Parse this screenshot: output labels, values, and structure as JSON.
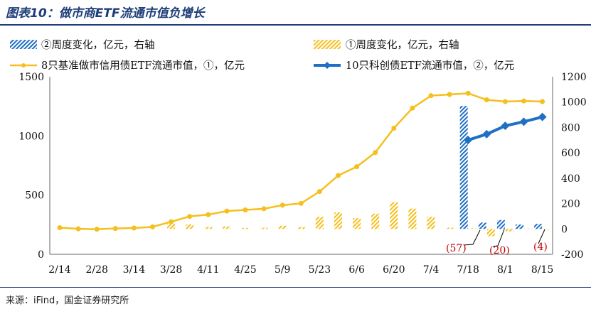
{
  "title": "图表10：做市商ETF流通市值负增长",
  "source": "来源：iFind，国金证券研究所",
  "legend": {
    "s2_bar": "②周度变化，亿元，右轴",
    "s1_bar": "①周度变化，亿元，右轴",
    "s1_line": "8只基准做市信用债ETF流通市值，①，亿元",
    "s2_line": "10只科创债ETF流通市值，②，亿元"
  },
  "colors": {
    "gold": "#f5bf1d",
    "blue": "#1f6fc4",
    "red": "#c00000",
    "navy": "#1f3d78"
  },
  "chart_data": {
    "type": "line",
    "x_tick_labels": [
      "2/14",
      "2/28",
      "3/14",
      "3/28",
      "4/11",
      "4/25",
      "5/9",
      "5/23",
      "6/6",
      "6/20",
      "7/4",
      "7/18",
      "8/1",
      "8/15"
    ],
    "left_ylim": [
      0,
      1500
    ],
    "left_ticks": [
      "0",
      "500",
      "1000",
      "1500"
    ],
    "right_ylim": [
      -200,
      1200
    ],
    "right_ticks": [
      "-200",
      "0",
      "200",
      "400",
      "600",
      "800",
      "1000",
      "1200"
    ],
    "series": [
      {
        "name": "8只基准做市信用债ETF流通市值，①，亿元",
        "axis": "left",
        "x": [
          0,
          1,
          2,
          3,
          4,
          5,
          6,
          7,
          8,
          9,
          10,
          11,
          12,
          13,
          14,
          15,
          16,
          17,
          18,
          19,
          20,
          21,
          22,
          23,
          24,
          25,
          26
        ],
        "values": [
          225,
          215,
          212,
          218,
          222,
          232,
          275,
          320,
          335,
          365,
          375,
          385,
          415,
          430,
          530,
          665,
          740,
          860,
          1065,
          1235,
          1340,
          1350,
          1360,
          1305,
          1290,
          1295,
          1290
        ]
      },
      {
        "name": "10只科创债ETF流通市值，②，亿元",
        "axis": "left",
        "x": [
          22,
          23,
          24,
          25,
          26
        ],
        "values": [
          965,
          1015,
          1085,
          1120,
          1160
        ]
      },
      {
        "name": "①周度变化，亿元，右轴",
        "axis": "right",
        "x": [
          6,
          7,
          8,
          9,
          10,
          11,
          12,
          13,
          14,
          15,
          16,
          17,
          18,
          19,
          20,
          21,
          22,
          23,
          24,
          25,
          26
        ],
        "values": [
          40,
          35,
          15,
          20,
          8,
          10,
          25,
          15,
          95,
          130,
          85,
          120,
          210,
          160,
          95,
          10,
          5,
          -57,
          -20,
          3,
          -4
        ]
      },
      {
        "name": "②周度变化，亿元，右轴",
        "axis": "right",
        "x": [
          22,
          23,
          24,
          25,
          26
        ],
        "values": [
          970,
          50,
          70,
          35,
          40
        ]
      }
    ],
    "annotations": [
      "(57)",
      "(20)",
      "(4)"
    ]
  }
}
